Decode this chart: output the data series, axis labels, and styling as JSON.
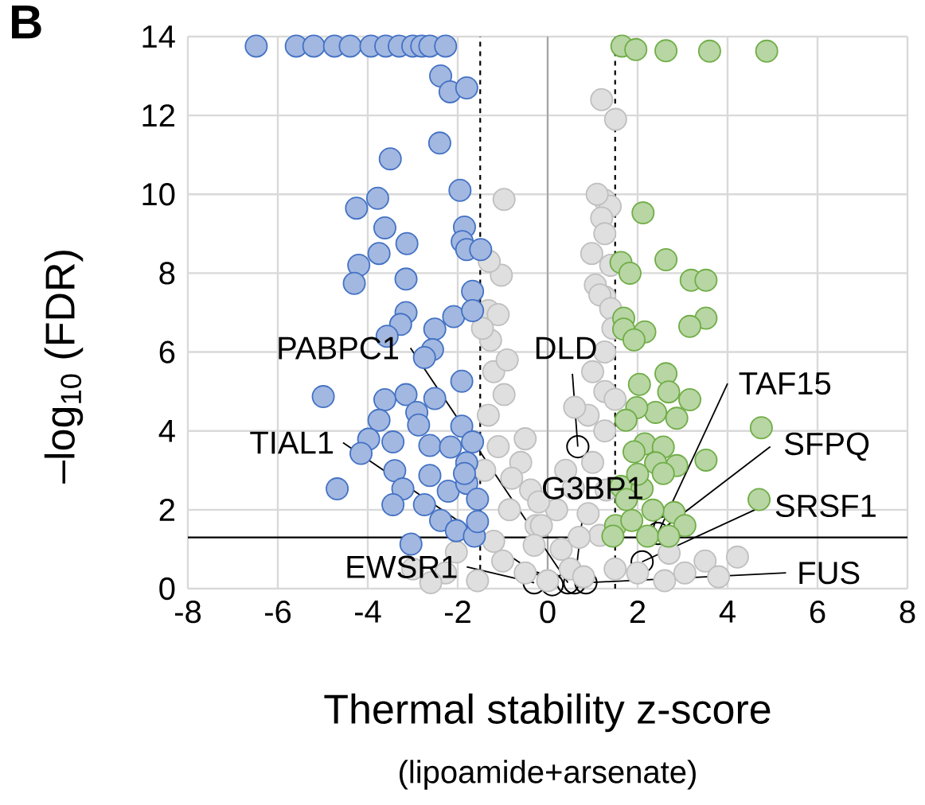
{
  "chart_data": {
    "type": "scatter",
    "title": "B",
    "xlabel": "Thermal stability z-score",
    "ylabel": "–log$_{10}$ (FDR)",
    "xlim": [
      -8,
      8
    ],
    "ylim": [
      0,
      14
    ],
    "xticks": [
      -8,
      -6,
      -4,
      -2,
      0,
      2,
      4,
      6,
      8
    ],
    "yticks": [
      0,
      2,
      4,
      6,
      8,
      10,
      12,
      14
    ],
    "grid": true,
    "marker": "circle",
    "series": [
      {
        "color": "#bfbfbf",
        "x": [
          1.2,
          1.51,
          -0.97,
          -1.03,
          1.27,
          1.39,
          1.2,
          1.27,
          0.98,
          1.06,
          1.27,
          1.16,
          1.4,
          1.27,
          1.0,
          1.27,
          0.9,
          1.27,
          0.57,
          0.2,
          -0.26,
          0.9,
          1.16,
          4.22,
          3.5,
          2.7,
          3.05,
          2.0,
          -1.32,
          -1.1,
          -1.27,
          -1.2,
          -0.97,
          -1.32,
          -1.1,
          -0.6,
          -0.38,
          -0.85,
          -0.14,
          -2.03,
          -2.27,
          -1.56,
          -1.0,
          0.0,
          0.5,
          -0.5,
          0.3,
          -0.3,
          0.8,
          1.5,
          -1.2,
          0.7,
          1.3,
          -0.8,
          0.4,
          -0.2,
          1.0,
          -0.5,
          0.6,
          -0.9,
          1.4,
          -1.3,
          1.1,
          1.45,
          -1.45,
          1.5,
          -1.4,
          2.6,
          -2.6,
          3.8,
          -3.0
        ],
        "values": [
          12.4,
          11.9,
          9.87,
          7.95,
          9.85,
          9.7,
          9.4,
          9.0,
          8.5,
          7.7,
          7.4,
          7.45,
          7.1,
          6.0,
          5.5,
          5.0,
          4.4,
          4.0,
          2.55,
          2.0,
          1.6,
          1.9,
          1.35,
          0.8,
          0.7,
          0.9,
          0.4,
          0.4,
          7.05,
          6.95,
          6.3,
          5.5,
          4.92,
          4.4,
          3.6,
          3.2,
          2.5,
          2.0,
          1.6,
          0.93,
          0.4,
          0.2,
          0.7,
          0.2,
          0.5,
          0.4,
          1.0,
          1.1,
          0.3,
          0.5,
          1.2,
          1.3,
          2.5,
          2.8,
          3.0,
          2.2,
          3.2,
          3.8,
          4.6,
          5.8,
          8.2,
          8.3,
          10.0,
          6.6,
          6.6,
          4.8,
          3.0,
          0.2,
          0.15,
          0.3,
          0.5
        ]
      },
      {
        "color": "#4472c4",
        "x": [
          -6.48,
          -5.59,
          -5.2,
          -4.74,
          -4.39,
          -3.93,
          -3.6,
          -3.3,
          -3.0,
          -2.8,
          -2.62,
          -2.27,
          -2.38,
          -2.17,
          -1.8,
          -2.4,
          -3.5,
          -1.95,
          -4.25,
          -3.78,
          -3.62,
          -3.13,
          -1.85,
          -1.9,
          -1.8,
          -1.49,
          -3.75,
          -4.2,
          -4.3,
          -3.15,
          -1.67,
          -3.15,
          -3.27,
          -3.57,
          -2.09,
          -1.67,
          -2.51,
          -2.56,
          -2.74,
          -4.99,
          -3.62,
          -3.15,
          -2.51,
          -1.91,
          -2.91,
          -2.87,
          -3.75,
          -3.98,
          -3.44,
          -4.15,
          -2.62,
          -2.16,
          -1.91,
          -1.67,
          -1.8,
          -3.4,
          -2.62,
          -4.68,
          -3.22,
          -3.44,
          -2.74,
          -2.21,
          -1.8,
          -1.56,
          -2.38,
          -2.03,
          -1.63,
          -3.04,
          -1.56,
          -1.85
        ],
        "values": [
          13.76,
          13.76,
          13.76,
          13.76,
          13.76,
          13.76,
          13.76,
          13.76,
          13.76,
          13.76,
          13.76,
          13.76,
          13.0,
          12.6,
          12.7,
          11.3,
          10.9,
          10.1,
          9.65,
          9.9,
          9.15,
          8.75,
          9.17,
          8.8,
          8.6,
          8.6,
          8.5,
          8.2,
          7.74,
          7.85,
          7.54,
          7.0,
          6.7,
          6.4,
          6.9,
          7.05,
          6.58,
          6.06,
          5.86,
          4.87,
          4.79,
          4.92,
          4.82,
          5.26,
          4.47,
          4.15,
          4.27,
          3.79,
          3.72,
          3.43,
          3.63,
          3.59,
          4.12,
          3.72,
          3.19,
          2.99,
          2.87,
          2.53,
          2.53,
          2.13,
          2.13,
          2.47,
          2.67,
          2.27,
          1.73,
          1.47,
          1.33,
          1.13,
          1.7,
          2.92
        ]
      },
      {
        "color": "#70ad47",
        "x": [
          1.65,
          1.96,
          2.63,
          3.6,
          4.87,
          2.12,
          1.63,
          1.83,
          2.63,
          3.19,
          3.52,
          1.69,
          3.52,
          3.16,
          2.16,
          1.69,
          1.92,
          2.63,
          2.04,
          2.69,
          3.16,
          2.4,
          2.87,
          1.98,
          1.74,
          4.75,
          2.16,
          1.92,
          2.57,
          3.52,
          2.4,
          2.87,
          4.7,
          1.63,
          2.1,
          2.81,
          1.51,
          1.87,
          2.34,
          1.75,
          3.05,
          1.45,
          2.22,
          2.69,
          2.57,
          2.0
        ],
        "values": [
          13.76,
          13.67,
          13.64,
          13.63,
          13.63,
          9.53,
          8.27,
          8.0,
          8.34,
          7.82,
          7.82,
          6.86,
          6.86,
          6.65,
          6.51,
          6.58,
          6.31,
          5.45,
          5.18,
          4.99,
          4.79,
          4.47,
          4.32,
          4.59,
          4.27,
          4.08,
          3.67,
          3.47,
          3.59,
          3.26,
          3.19,
          3.12,
          2.26,
          2.59,
          2.53,
          1.93,
          1.6,
          1.73,
          1.99,
          2.26,
          1.6,
          1.33,
          1.33,
          1.33,
          2.92,
          2.9
        ]
      }
    ],
    "ref_lines": [
      {
        "axis": "x",
        "value": -1.5,
        "color": "#000000",
        "line_style": "dashed"
      },
      {
        "axis": "x",
        "value": 1.5,
        "color": "#000000",
        "line_style": "dashed"
      },
      {
        "axis": "x",
        "value": 0,
        "color": "#a6a6a6",
        "line_style": "solid"
      },
      {
        "axis": "y",
        "value": 1.3,
        "color": "#000000",
        "line_style": "solid"
      }
    ],
    "annotations": [
      "(lipoamide+arsenate)",
      {
        "text": "PABPC1",
        "x": 0.45,
        "y": 0.15
      },
      {
        "text": "TIAL1",
        "x": 0.1,
        "y": 0.1
      },
      {
        "text": "EWSR1",
        "x": -0.3,
        "y": 0.15
      },
      {
        "text": "G3BP1",
        "x": 0.6,
        "y": 0.15
      },
      {
        "text": "DLD",
        "x": 0.67,
        "y": 3.6
      },
      {
        "text": "TAF15",
        "x": 2.45,
        "y": 1.4
      },
      {
        "text": "SFPQ",
        "x": 2.6,
        "y": 1.55
      },
      {
        "text": "SRSF1",
        "x": 2.1,
        "y": 0.68
      },
      {
        "text": "FUS",
        "x": 0.85,
        "y": 0.15
      }
    ]
  }
}
